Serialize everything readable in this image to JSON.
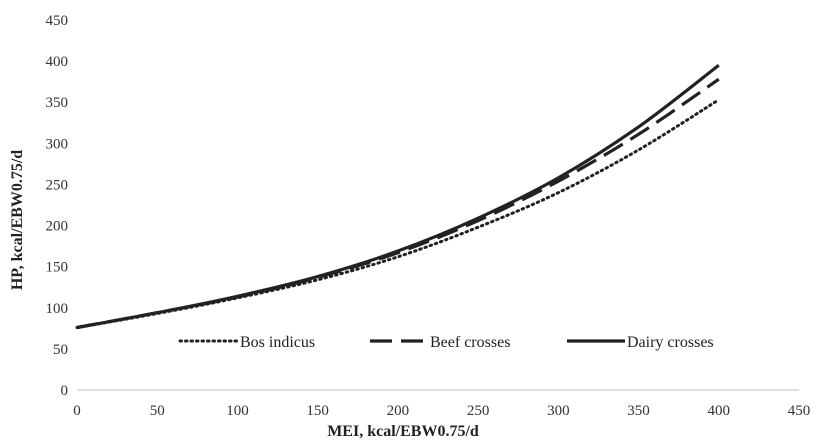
{
  "chart_data": {
    "type": "line",
    "title": "",
    "xlabel": "MEI, kcal/EBW0.75/d",
    "ylabel": "HP, kcal/EBW0.75/d",
    "xlim": [
      0,
      450
    ],
    "ylim": [
      0,
      450
    ],
    "xticks": [
      "0",
      "50",
      "100",
      "150",
      "200",
      "250",
      "300",
      "350",
      "400",
      "450"
    ],
    "yticks": [
      "0",
      "50",
      "100",
      "150",
      "200",
      "250",
      "300",
      "350",
      "400",
      "450"
    ],
    "grid": false,
    "legend_position": "inside-bottom-center",
    "x": [
      0,
      50,
      100,
      150,
      200,
      250,
      300,
      350,
      400
    ],
    "series": [
      {
        "name": "Bos indicus",
        "style": "dotted",
        "color": "#222222",
        "values": [
          76,
          93,
          112,
          134,
          162,
          198,
          240,
          292,
          353
        ]
      },
      {
        "name": "Beef crosses",
        "style": "dashed",
        "color": "#222222",
        "values": [
          76,
          94,
          113,
          137,
          167,
          206,
          254,
          311,
          378
        ]
      },
      {
        "name": "Dairy crosses",
        "style": "solid",
        "color": "#222222",
        "values": [
          76,
          94,
          114,
          138,
          169,
          209,
          258,
          320,
          395
        ]
      }
    ]
  }
}
